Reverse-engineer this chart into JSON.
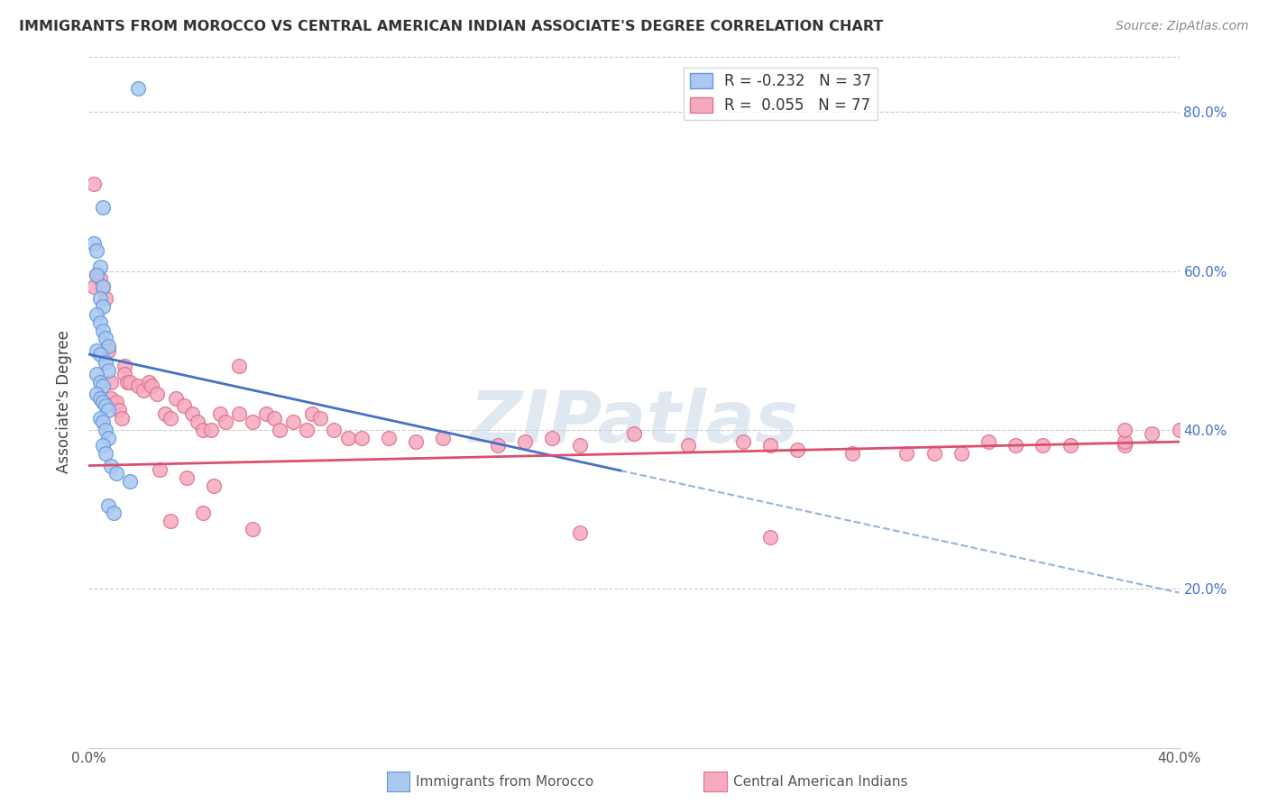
{
  "title": "IMMIGRANTS FROM MOROCCO VS CENTRAL AMERICAN INDIAN ASSOCIATE'S DEGREE CORRELATION CHART",
  "source": "Source: ZipAtlas.com",
  "ylabel": "Associate's Degree",
  "x_min": 0.0,
  "x_max": 0.4,
  "y_min": 0.0,
  "y_max": 0.87,
  "right_yticks": [
    0.2,
    0.4,
    0.6,
    0.8
  ],
  "right_yticklabels": [
    "20.0%",
    "40.0%",
    "60.0%",
    "80.0%"
  ],
  "legend_blue_r": "-0.232",
  "legend_blue_n": "37",
  "legend_pink_r": "0.055",
  "legend_pink_n": "77",
  "series_blue_color": "#aac8f0",
  "series_blue_edge": "#6699dd",
  "series_pink_color": "#f5aabf",
  "series_pink_edge": "#e07090",
  "trend_blue_color": "#4472c4",
  "trend_pink_color": "#d94f6e",
  "watermark": "ZIPatlas",
  "blue_trend_x0": 0.0,
  "blue_trend_y0": 0.495,
  "blue_trend_x1": 0.4,
  "blue_trend_y1": 0.195,
  "blue_trend_solid_end": 0.195,
  "pink_trend_x0": 0.0,
  "pink_trend_y0": 0.355,
  "pink_trend_x1": 0.4,
  "pink_trend_y1": 0.385,
  "blue_x": [
    0.018,
    0.005,
    0.002,
    0.003,
    0.004,
    0.003,
    0.005,
    0.004,
    0.005,
    0.003,
    0.004,
    0.005,
    0.006,
    0.007,
    0.003,
    0.004,
    0.006,
    0.007,
    0.003,
    0.004,
    0.005,
    0.003,
    0.004,
    0.005,
    0.006,
    0.007,
    0.004,
    0.005,
    0.006,
    0.007,
    0.005,
    0.006,
    0.008,
    0.01,
    0.015,
    0.007,
    0.009
  ],
  "blue_y": [
    0.83,
    0.68,
    0.635,
    0.625,
    0.605,
    0.595,
    0.58,
    0.565,
    0.555,
    0.545,
    0.535,
    0.525,
    0.515,
    0.505,
    0.5,
    0.495,
    0.485,
    0.475,
    0.47,
    0.46,
    0.455,
    0.445,
    0.44,
    0.435,
    0.43,
    0.425,
    0.415,
    0.41,
    0.4,
    0.39,
    0.38,
    0.37,
    0.355,
    0.345,
    0.335,
    0.305,
    0.295
  ],
  "pink_x": [
    0.002,
    0.002,
    0.003,
    0.004,
    0.005,
    0.006,
    0.007,
    0.008,
    0.008,
    0.01,
    0.011,
    0.012,
    0.013,
    0.013,
    0.014,
    0.015,
    0.018,
    0.02,
    0.022,
    0.023,
    0.025,
    0.028,
    0.03,
    0.032,
    0.035,
    0.038,
    0.04,
    0.042,
    0.045,
    0.048,
    0.05,
    0.055,
    0.055,
    0.06,
    0.065,
    0.068,
    0.07,
    0.075,
    0.08,
    0.082,
    0.085,
    0.09,
    0.095,
    0.1,
    0.11,
    0.12,
    0.13,
    0.15,
    0.16,
    0.17,
    0.18,
    0.2,
    0.22,
    0.24,
    0.25,
    0.26,
    0.28,
    0.3,
    0.31,
    0.32,
    0.33,
    0.34,
    0.35,
    0.36,
    0.38,
    0.38,
    0.39,
    0.4,
    0.026,
    0.036,
    0.046,
    0.042,
    0.03,
    0.06,
    0.18,
    0.25,
    0.38
  ],
  "pink_y": [
    0.71,
    0.58,
    0.595,
    0.59,
    0.58,
    0.565,
    0.5,
    0.46,
    0.44,
    0.435,
    0.425,
    0.415,
    0.48,
    0.47,
    0.46,
    0.46,
    0.455,
    0.45,
    0.46,
    0.455,
    0.445,
    0.42,
    0.415,
    0.44,
    0.43,
    0.42,
    0.41,
    0.4,
    0.4,
    0.42,
    0.41,
    0.42,
    0.48,
    0.41,
    0.42,
    0.415,
    0.4,
    0.41,
    0.4,
    0.42,
    0.415,
    0.4,
    0.39,
    0.39,
    0.39,
    0.385,
    0.39,
    0.38,
    0.385,
    0.39,
    0.38,
    0.395,
    0.38,
    0.385,
    0.38,
    0.375,
    0.37,
    0.37,
    0.37,
    0.37,
    0.385,
    0.38,
    0.38,
    0.38,
    0.38,
    0.385,
    0.395,
    0.4,
    0.35,
    0.34,
    0.33,
    0.295,
    0.285,
    0.275,
    0.27,
    0.265,
    0.4
  ]
}
